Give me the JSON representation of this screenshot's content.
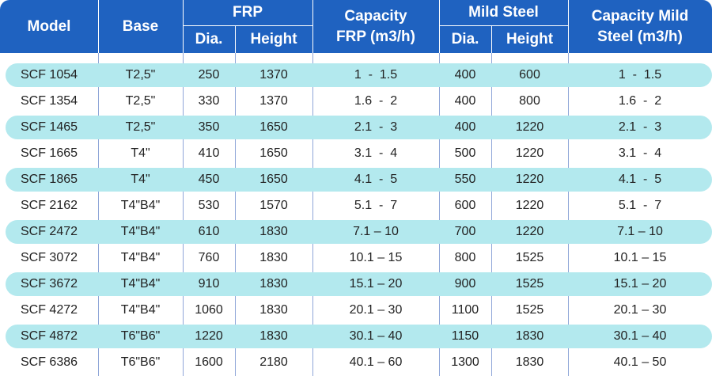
{
  "header": {
    "model": "Model",
    "base": "Base",
    "frp": "FRP",
    "frp_dia": "Dia.",
    "frp_height": "Height",
    "capacity_frp_line1": "Capacity",
    "capacity_frp_line2": "FRP (m3/h)",
    "mild_steel": "Mild Steel",
    "ms_dia": "Dia.",
    "ms_height": "Height",
    "capacity_ms_line1": "Capacity Mild",
    "capacity_ms_line2": "Steel (m3/h)"
  },
  "colors": {
    "header_bg": "#1f62c0",
    "stripe": "#b3e9ee",
    "text": "#222222"
  },
  "rows": [
    {
      "model": "SCF 1054",
      "base": "T2,5\"",
      "frp_dia": "250",
      "frp_height": "1370",
      "cap_frp": "1  -  1.5",
      "ms_dia": "400",
      "ms_height": "600",
      "cap_ms": "1  -  1.5"
    },
    {
      "model": "SCF 1354",
      "base": "T2,5\"",
      "frp_dia": "330",
      "frp_height": "1370",
      "cap_frp": "1.6  -  2",
      "ms_dia": "400",
      "ms_height": "800",
      "cap_ms": "1.6  -  2"
    },
    {
      "model": "SCF 1465",
      "base": "T2,5\"",
      "frp_dia": "350",
      "frp_height": "1650",
      "cap_frp": "2.1  -  3",
      "ms_dia": "400",
      "ms_height": "1220",
      "cap_ms": "2.1  -  3"
    },
    {
      "model": "SCF 1665",
      "base": "T4\"",
      "frp_dia": "410",
      "frp_height": "1650",
      "cap_frp": "3.1  -  4",
      "ms_dia": "500",
      "ms_height": "1220",
      "cap_ms": "3.1  -  4"
    },
    {
      "model": "SCF 1865",
      "base": "T4\"",
      "frp_dia": "450",
      "frp_height": "1650",
      "cap_frp": "4.1  -  5",
      "ms_dia": "550",
      "ms_height": "1220",
      "cap_ms": "4.1  -  5"
    },
    {
      "model": "SCF 2162",
      "base": "T4\"B4\"",
      "frp_dia": "530",
      "frp_height": "1570",
      "cap_frp": "5.1  -  7",
      "ms_dia": "600",
      "ms_height": "1220",
      "cap_ms": "5.1  -  7"
    },
    {
      "model": "SCF 2472",
      "base": "T4\"B4\"",
      "frp_dia": "610",
      "frp_height": "1830",
      "cap_frp": "7.1 – 10",
      "ms_dia": "700",
      "ms_height": "1220",
      "cap_ms": "7.1 – 10"
    },
    {
      "model": "SCF 3072",
      "base": "T4\"B4\"",
      "frp_dia": "760",
      "frp_height": "1830",
      "cap_frp": "10.1 – 15",
      "ms_dia": "800",
      "ms_height": "1525",
      "cap_ms": "10.1 – 15"
    },
    {
      "model": "SCF 3672",
      "base": "T4\"B4\"",
      "frp_dia": "910",
      "frp_height": "1830",
      "cap_frp": "15.1 – 20",
      "ms_dia": "900",
      "ms_height": "1525",
      "cap_ms": "15.1 – 20"
    },
    {
      "model": "SCF 4272",
      "base": "T4\"B4\"",
      "frp_dia": "1060",
      "frp_height": "1830",
      "cap_frp": "20.1 – 30",
      "ms_dia": "1100",
      "ms_height": "1525",
      "cap_ms": "20.1 – 30"
    },
    {
      "model": "SCF 4872",
      "base": "T6\"B6\"",
      "frp_dia": "1220",
      "frp_height": "1830",
      "cap_frp": "30.1 – 40",
      "ms_dia": "1150",
      "ms_height": "1830",
      "cap_ms": "30.1 – 40"
    },
    {
      "model": "SCF 6386",
      "base": "T6\"B6\"",
      "frp_dia": "1600",
      "frp_height": "2180",
      "cap_frp": "40.1 – 60",
      "ms_dia": "1300",
      "ms_height": "1830",
      "cap_ms": "40.1 – 50"
    }
  ]
}
